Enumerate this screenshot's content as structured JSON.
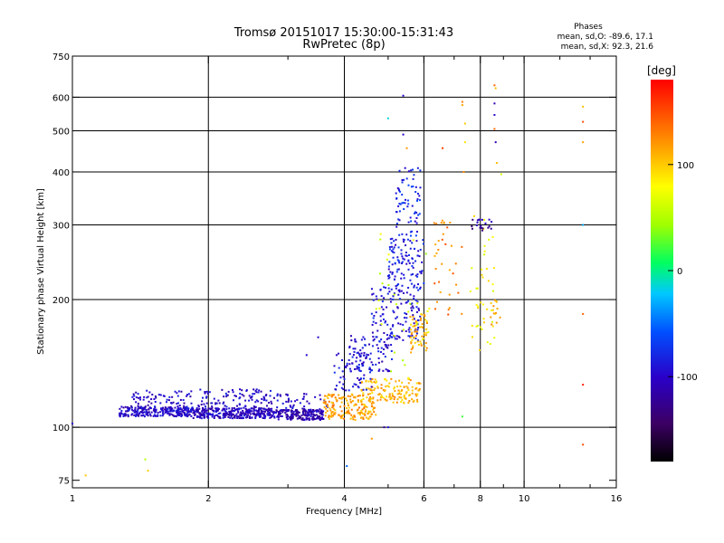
{
  "chart_data": {
    "type": "scatter",
    "title": "Tromsø 20151017 15:30:00-15:31:43",
    "subtitle": "RwPretec (8p)",
    "xlabel": "Frequency [MHz]",
    "ylabel": "Stationary phase Virtual Height [km]",
    "x_scale": "log",
    "y_scale": "log",
    "xlim": [
      1,
      16
    ],
    "ylim": [
      72,
      750
    ],
    "x_ticks": [
      1,
      2,
      4,
      6,
      8,
      10,
      16
    ],
    "x_tick_labels": [
      "1",
      "2",
      "4",
      "6",
      "8",
      "10",
      "16"
    ],
    "x_grid": [
      2,
      4,
      6,
      8,
      10
    ],
    "y_ticks": [
      75,
      100,
      200,
      300,
      400,
      500,
      600,
      750
    ],
    "y_tick_labels": [
      "75",
      "100",
      "200",
      "300",
      "400",
      "500",
      "600",
      "750"
    ],
    "y_grid": [
      100,
      200,
      300,
      400,
      500,
      600
    ],
    "grid": true,
    "stats": {
      "title": "Phases",
      "line_o": "mean, sd,O: -89.6, 17.1",
      "line_x": "mean, sd,X:  92.3, 21.6"
    },
    "colorbar": {
      "label": "[deg]",
      "range": [
        -180,
        180
      ],
      "ticks": [
        100,
        0,
        -100
      ],
      "tick_labels": [
        "100",
        "0",
        "-100"
      ],
      "colormap": "rainbow: black-purple-blue-cyan-green-yellow-orange-red"
    },
    "clusters": [
      {
        "x0": 1.27,
        "x1": 1.85,
        "y0": 106,
        "y1": 112,
        "phase": -98,
        "n": 260
      },
      {
        "x0": 1.35,
        "x1": 1.85,
        "y0": 112,
        "y1": 122,
        "phase": -100,
        "n": 60
      },
      {
        "x0": 1.85,
        "x1": 2.8,
        "y0": 105,
        "y1": 111,
        "phase": -102,
        "n": 320
      },
      {
        "x0": 1.9,
        "x1": 2.8,
        "y0": 111,
        "y1": 123,
        "phase": -100,
        "n": 90
      },
      {
        "x0": 2.8,
        "x1": 3.6,
        "y0": 104,
        "y1": 110,
        "phase": -110,
        "n": 190
      },
      {
        "x0": 2.6,
        "x1": 3.7,
        "y0": 110,
        "y1": 120,
        "phase": -100,
        "n": 50
      },
      {
        "x0": 3.6,
        "x1": 4.7,
        "y0": 104,
        "y1": 120,
        "phase": 115,
        "n": 170
      },
      {
        "x0": 4.3,
        "x1": 5.9,
        "y0": 114,
        "y1": 130,
        "phase": 108,
        "n": 140
      },
      {
        "x0": 3.8,
        "x1": 4.6,
        "y0": 122,
        "y1": 150,
        "phase": -90,
        "n": 60
      },
      {
        "x0": 4.1,
        "x1": 5.1,
        "y0": 135,
        "y1": 165,
        "phase": -95,
        "n": 90
      },
      {
        "x0": 4.6,
        "x1": 5.9,
        "y0": 160,
        "y1": 215,
        "phase": -92,
        "n": 130
      },
      {
        "x0": 5.0,
        "x1": 6.0,
        "y0": 210,
        "y1": 280,
        "phase": -88,
        "n": 110
      },
      {
        "x0": 5.2,
        "x1": 5.9,
        "y0": 280,
        "y1": 420,
        "phase": -80,
        "n": 70
      },
      {
        "x0": 5.6,
        "x1": 6.1,
        "y0": 150,
        "y1": 185,
        "phase": 110,
        "n": 60
      },
      {
        "x0": 4.7,
        "x1": 6.2,
        "y0": 130,
        "y1": 300,
        "phase": 60,
        "n": 30
      },
      {
        "x0": 6.3,
        "x1": 7.3,
        "y0": 180,
        "y1": 310,
        "phase": 130,
        "n": 35
      },
      {
        "x0": 7.6,
        "x1": 8.6,
        "y0": 150,
        "y1": 320,
        "phase": 80,
        "n": 40
      },
      {
        "x0": 7.6,
        "x1": 8.5,
        "y0": 290,
        "y1": 310,
        "phase": -120,
        "n": 20
      },
      {
        "x0": 8.3,
        "x1": 8.9,
        "y0": 170,
        "y1": 200,
        "phase": 110,
        "n": 15
      }
    ],
    "points": [
      {
        "x": 1.07,
        "y": 77,
        "phase": 100
      },
      {
        "x": 1.45,
        "y": 84,
        "phase": 50
      },
      {
        "x": 1.47,
        "y": 79,
        "phase": 100
      },
      {
        "x": 5.4,
        "y": 605,
        "phase": -100
      },
      {
        "x": 5.0,
        "y": 535,
        "phase": -15
      },
      {
        "x": 5.4,
        "y": 490,
        "phase": -100
      },
      {
        "x": 5.5,
        "y": 455,
        "phase": 120
      },
      {
        "x": 7.3,
        "y": 585,
        "phase": 130
      },
      {
        "x": 7.3,
        "y": 575,
        "phase": 115
      },
      {
        "x": 7.4,
        "y": 520,
        "phase": 100
      },
      {
        "x": 7.4,
        "y": 470,
        "phase": 90
      },
      {
        "x": 6.6,
        "y": 455,
        "phase": 155
      },
      {
        "x": 7.35,
        "y": 400,
        "phase": 125
      },
      {
        "x": 8.6,
        "y": 640,
        "phase": 140
      },
      {
        "x": 8.65,
        "y": 630,
        "phase": 105
      },
      {
        "x": 8.6,
        "y": 580,
        "phase": -110
      },
      {
        "x": 8.6,
        "y": 545,
        "phase": -95
      },
      {
        "x": 8.6,
        "y": 505,
        "phase": 140
      },
      {
        "x": 8.65,
        "y": 470,
        "phase": -110
      },
      {
        "x": 8.7,
        "y": 420,
        "phase": 105
      },
      {
        "x": 8.9,
        "y": 395,
        "phase": 60
      },
      {
        "x": 13.5,
        "y": 570,
        "phase": 105
      },
      {
        "x": 13.5,
        "y": 525,
        "phase": 150
      },
      {
        "x": 13.5,
        "y": 470,
        "phase": 115
      },
      {
        "x": 13.5,
        "y": 300,
        "phase": -30
      },
      {
        "x": 13.5,
        "y": 185,
        "phase": 140
      },
      {
        "x": 13.5,
        "y": 126,
        "phase": 170
      },
      {
        "x": 13.5,
        "y": 91,
        "phase": 150
      },
      {
        "x": 4.05,
        "y": 81,
        "phase": -50
      },
      {
        "x": 4.6,
        "y": 94,
        "phase": 120
      },
      {
        "x": 4.9,
        "y": 100,
        "phase": -120
      },
      {
        "x": 5.0,
        "y": 100,
        "phase": -90
      },
      {
        "x": 7.3,
        "y": 106,
        "phase": 20
      },
      {
        "x": 1.0,
        "y": 102,
        "phase": -100
      },
      {
        "x": 3.3,
        "y": 148,
        "phase": -100
      },
      {
        "x": 3.5,
        "y": 163,
        "phase": -100
      }
    ]
  }
}
